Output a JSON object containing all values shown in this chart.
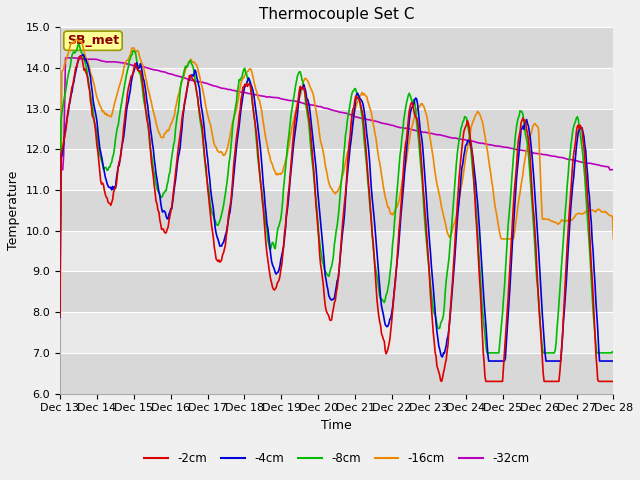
{
  "title": "Thermocouple Set C",
  "xlabel": "Time",
  "ylabel": "Temperature",
  "annotation": "SB_met",
  "ylim": [
    6.0,
    15.0
  ],
  "yticks": [
    6.0,
    7.0,
    8.0,
    9.0,
    10.0,
    11.0,
    12.0,
    13.0,
    14.0,
    15.0
  ],
  "x_labels": [
    "Dec 13",
    "Dec 14",
    "Dec 15",
    "Dec 16",
    "Dec 17",
    "Dec 18",
    "Dec 19",
    "Dec 20",
    "Dec 21",
    "Dec 22",
    "Dec 23",
    "Dec 24",
    "Dec 25",
    "Dec 26",
    "Dec 27",
    "Dec 28"
  ],
  "series": {
    "-2cm": {
      "color": "#dd0000",
      "lw": 1.2
    },
    "-4cm": {
      "color": "#0000dd",
      "lw": 1.2
    },
    "-8cm": {
      "color": "#00bb00",
      "lw": 1.2
    },
    "-16cm": {
      "color": "#ee8800",
      "lw": 1.2
    },
    "-32cm": {
      "color": "#bb00bb",
      "lw": 1.2
    }
  },
  "legend_order": [
    "-2cm",
    "-4cm",
    "-8cm",
    "-16cm",
    "-32cm"
  ],
  "fig_facecolor": "#f0f0f0",
  "ax_facecolor": "#e0e0e0",
  "title_fontsize": 11,
  "axis_label_fontsize": 9,
  "tick_fontsize": 8
}
